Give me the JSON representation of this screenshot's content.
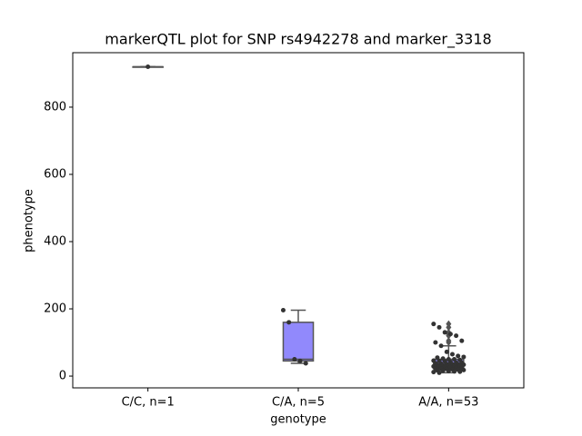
{
  "chart_data": {
    "type": "box",
    "title": "markerQTL plot for SNP rs4942278 and marker_3318",
    "xlabel": "genotype",
    "ylabel": "phenotype",
    "categories": [
      "C/C, n=1",
      "C/A, n=5",
      "A/A, n=53"
    ],
    "boxes": [
      {
        "min": 920,
        "q1": 920,
        "median": 920,
        "q3": 920,
        "max": 920,
        "outliers": []
      },
      {
        "min": 38,
        "q1": 45,
        "median": 50,
        "q3": 160,
        "max": 196,
        "outliers": []
      },
      {
        "min": 10,
        "q1": 22,
        "median": 35,
        "q3": 50,
        "max": 90,
        "outliers": [
          100,
          105,
          120,
          125,
          130,
          145,
          155
        ]
      }
    ],
    "points": [
      [
        920
      ],
      [
        196,
        160,
        50,
        45,
        38
      ],
      [
        155,
        145,
        130,
        125,
        120,
        105,
        100,
        90,
        72,
        65,
        60,
        57,
        55,
        52,
        50,
        50,
        48,
        46,
        45,
        44,
        42,
        40,
        40,
        38,
        37,
        36,
        35,
        35,
        34,
        33,
        32,
        31,
        30,
        30,
        29,
        28,
        27,
        26,
        25,
        24,
        23,
        22,
        21,
        20,
        19,
        18,
        17,
        16,
        15,
        14,
        13,
        12,
        10
      ]
    ],
    "color": "#9189fc",
    "ylim": [
      -35,
      962
    ],
    "yticks": [
      0,
      200,
      400,
      600,
      800
    ]
  }
}
